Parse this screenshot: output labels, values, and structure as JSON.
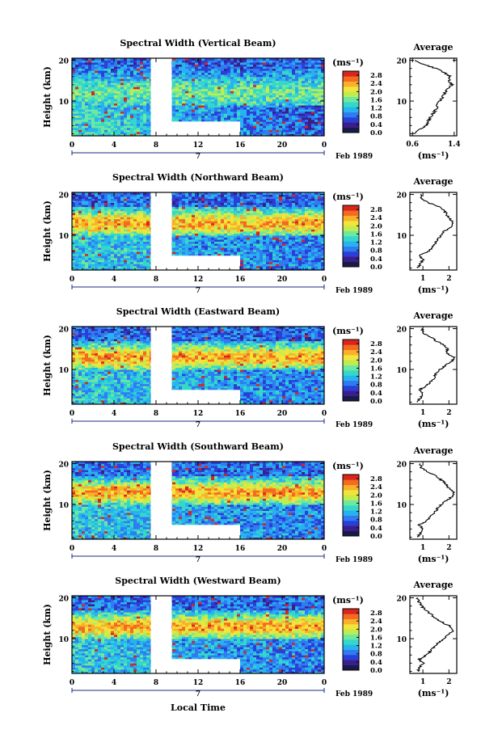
{
  "figure": {
    "x_axis_label": "Local Time",
    "y_axis_label": "Height (km)",
    "unit_label": "(ms⁻¹)",
    "date_label": "Feb 1989",
    "day_label": "7",
    "average_title": "Average"
  },
  "colorbar": {
    "tick_labels": [
      "0.0",
      "0.4",
      "0.8",
      "1.2",
      "1.6",
      "2.0",
      "2.4",
      "2.8"
    ],
    "range": [
      0.0,
      3.0
    ],
    "colors": [
      "#1a1a4a",
      "#3a1e8a",
      "#2a3fd8",
      "#2f7cf0",
      "#27b3f0",
      "#35d8c8",
      "#6ee8a0",
      "#c0ec50",
      "#f2e43a",
      "#f9b02a",
      "#f36a20",
      "#d8261c"
    ]
  },
  "chart_data": [
    {
      "type": "heatmap",
      "title": "Spectral Width (Vertical Beam)",
      "x_ticks": [
        "0",
        "4",
        "8",
        "12",
        "16",
        "20",
        "0"
      ],
      "x_range": [
        0,
        24
      ],
      "y_ticks": [
        "20",
        "10"
      ],
      "y_range": [
        1.5,
        20.5
      ],
      "data_gap": {
        "x": [
          7.5,
          9.5
        ],
        "y_above": 5,
        "extended_to": 16
      },
      "avg_x_ticks": [
        "0.6",
        "1.4"
      ],
      "avg_x_range": [
        0.55,
        1.45
      ],
      "avg_profile": [
        [
          0.62,
          2
        ],
        [
          0.74,
          3
        ],
        [
          0.86,
          4
        ],
        [
          0.9,
          5
        ],
        [
          0.94,
          6
        ],
        [
          1.0,
          7
        ],
        [
          1.05,
          8
        ],
        [
          1.08,
          9
        ],
        [
          1.12,
          10
        ],
        [
          1.18,
          11
        ],
        [
          1.22,
          12
        ],
        [
          1.28,
          13
        ],
        [
          1.36,
          14
        ],
        [
          1.3,
          15
        ],
        [
          1.33,
          16
        ],
        [
          1.2,
          17
        ],
        [
          1.05,
          18
        ],
        [
          0.8,
          19
        ],
        [
          0.65,
          20
        ]
      ]
    },
    {
      "type": "heatmap",
      "title": "Spectral Width (Northward Beam)",
      "x_ticks": [
        "0",
        "4",
        "8",
        "12",
        "16",
        "20",
        "0"
      ],
      "x_range": [
        0,
        24
      ],
      "y_ticks": [
        "20",
        "10"
      ],
      "y_range": [
        1.5,
        20.5
      ],
      "data_gap": {
        "x": [
          7.5,
          9.5
        ],
        "y_above": 5,
        "extended_to": 16
      },
      "avg_x_ticks": [
        "1",
        "2"
      ],
      "avg_x_range": [
        0.5,
        2.3
      ],
      "avg_profile": [
        [
          0.8,
          2
        ],
        [
          0.9,
          3
        ],
        [
          1.0,
          4
        ],
        [
          0.85,
          5
        ],
        [
          1.2,
          6
        ],
        [
          1.35,
          7
        ],
        [
          1.45,
          8
        ],
        [
          1.55,
          9
        ],
        [
          1.7,
          10
        ],
        [
          1.8,
          11
        ],
        [
          2.1,
          12
        ],
        [
          2.15,
          13
        ],
        [
          2.05,
          14
        ],
        [
          1.9,
          15
        ],
        [
          1.85,
          16
        ],
        [
          1.6,
          17
        ],
        [
          1.2,
          18
        ],
        [
          0.95,
          19
        ],
        [
          0.9,
          20
        ]
      ]
    },
    {
      "type": "heatmap",
      "title": "Spectral Width (Eastward Beam)",
      "x_ticks": [
        "0",
        "4",
        "8",
        "12",
        "16",
        "20",
        "0"
      ],
      "x_range": [
        0,
        24
      ],
      "y_ticks": [
        "20",
        "10"
      ],
      "y_range": [
        1.5,
        20.5
      ],
      "data_gap": {
        "x": [
          7.5,
          9.5
        ],
        "y_above": 5,
        "extended_to": 16
      },
      "avg_x_ticks": [
        "1",
        "2"
      ],
      "avg_x_range": [
        0.5,
        2.3
      ],
      "avg_profile": [
        [
          0.8,
          2
        ],
        [
          0.9,
          3
        ],
        [
          1.0,
          4
        ],
        [
          0.85,
          5
        ],
        [
          1.15,
          6
        ],
        [
          1.3,
          7
        ],
        [
          1.45,
          8
        ],
        [
          1.5,
          9
        ],
        [
          1.65,
          10
        ],
        [
          1.85,
          11
        ],
        [
          2.1,
          12
        ],
        [
          2.2,
          13
        ],
        [
          1.9,
          14
        ],
        [
          1.95,
          15
        ],
        [
          1.8,
          16
        ],
        [
          1.5,
          17
        ],
        [
          1.3,
          18
        ],
        [
          1.0,
          19
        ],
        [
          0.95,
          20
        ]
      ]
    },
    {
      "type": "heatmap",
      "title": "Spectral Width (Southward Beam)",
      "x_ticks": [
        "0",
        "4",
        "8",
        "12",
        "16",
        "20",
        "0"
      ],
      "x_range": [
        0,
        24
      ],
      "y_ticks": [
        "20",
        "10"
      ],
      "y_range": [
        1.5,
        20.5
      ],
      "data_gap": {
        "x": [
          7.5,
          9.5
        ],
        "y_above": 5,
        "extended_to": 16
      },
      "avg_x_ticks": [
        "1",
        "2"
      ],
      "avg_x_range": [
        0.5,
        2.3
      ],
      "avg_profile": [
        [
          0.8,
          2
        ],
        [
          0.9,
          3
        ],
        [
          1.0,
          4
        ],
        [
          0.85,
          5
        ],
        [
          1.15,
          6
        ],
        [
          1.3,
          7
        ],
        [
          1.45,
          8
        ],
        [
          1.55,
          9
        ],
        [
          1.7,
          10
        ],
        [
          1.9,
          11
        ],
        [
          2.15,
          12
        ],
        [
          2.2,
          13
        ],
        [
          2.0,
          14
        ],
        [
          1.9,
          15
        ],
        [
          1.7,
          16
        ],
        [
          1.5,
          17
        ],
        [
          1.2,
          18
        ],
        [
          0.95,
          19
        ],
        [
          0.9,
          20
        ]
      ]
    },
    {
      "type": "heatmap",
      "title": "Spectral Width (Westward Beam)",
      "x_ticks": [
        "0",
        "4",
        "8",
        "12",
        "16",
        "20",
        "0"
      ],
      "x_range": [
        0,
        24
      ],
      "y_ticks": [
        "20",
        "10"
      ],
      "y_range": [
        1.5,
        20.5
      ],
      "data_gap": {
        "x": [
          7.5,
          9.5
        ],
        "y_above": 5,
        "extended_to": 16
      },
      "avg_x_ticks": [
        "1",
        "2"
      ],
      "avg_x_range": [
        0.5,
        2.3
      ],
      "avg_profile": [
        [
          0.8,
          2
        ],
        [
          0.9,
          3
        ],
        [
          1.0,
          4
        ],
        [
          0.85,
          5
        ],
        [
          1.15,
          6
        ],
        [
          1.3,
          7
        ],
        [
          1.45,
          8
        ],
        [
          1.6,
          9
        ],
        [
          1.8,
          10
        ],
        [
          2.0,
          11
        ],
        [
          2.15,
          12
        ],
        [
          2.05,
          13
        ],
        [
          1.75,
          14
        ],
        [
          1.5,
          15
        ],
        [
          1.3,
          16
        ],
        [
          1.1,
          17
        ],
        [
          0.95,
          18
        ],
        [
          0.85,
          19
        ],
        [
          0.8,
          20
        ]
      ]
    }
  ]
}
